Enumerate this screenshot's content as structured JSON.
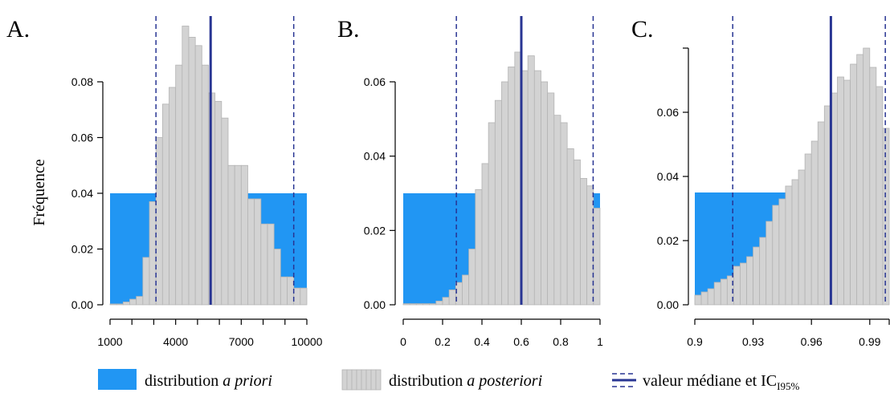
{
  "ylabel": "Fréquence",
  "legend": {
    "prior": "distribution ",
    "prior_em": "a priori",
    "posterior": "distribution ",
    "posterior_em": "a posteriori",
    "median": "valeur médiane et IC",
    "median_sub": "I95%"
  },
  "colors": {
    "prior": "#2196f3",
    "posterior": "#d3d3d3",
    "posterior_edge": "#b4b4b4",
    "median": "#283593",
    "axis": "#000000"
  },
  "chart_data": [
    {
      "type": "bar",
      "panel_label": "A.",
      "xlim": [
        1000,
        10000
      ],
      "ylim": [
        0,
        0.08
      ],
      "xticks": [
        1000,
        4000,
        7000,
        10000
      ],
      "xtick_labels": [
        "1000",
        "4000",
        "7000",
        "10000"
      ],
      "yticks": [
        0,
        0.02,
        0.04,
        0.06,
        0.08
      ],
      "ytick_labels": [
        "0.00",
        "0.02",
        "0.04",
        "0.06",
        "0.08"
      ],
      "xaxis_extra_ticks": [
        2000,
        3000,
        5000,
        6000,
        8000,
        9000
      ],
      "prior": [
        {
          "x": [
            1000,
            10000
          ],
          "y": 0.04
        }
      ],
      "posterior": {
        "edges_from": 1000,
        "bin_width": 300,
        "values": [
          0,
          0,
          0.001,
          0.002,
          0.003,
          0.017,
          0.037,
          0.06,
          0.072,
          0.078,
          0.086,
          0.1,
          0.096,
          0.093,
          0.086,
          0.076,
          0.073,
          0.067,
          0.05,
          0.05,
          0.05,
          0.038,
          0.038,
          0.029,
          0.029,
          0.02,
          0.01,
          0.01,
          0.006,
          0.006
        ]
      },
      "median": 5600,
      "ci": [
        3100,
        9400
      ]
    },
    {
      "type": "bar",
      "panel_label": "B.",
      "xlim": [
        0,
        1
      ],
      "ylim": [
        0,
        0.06
      ],
      "xticks": [
        0,
        0.2,
        0.4,
        0.6,
        0.8,
        1
      ],
      "xtick_labels": [
        "0",
        "0.2",
        "0.4",
        "0.6",
        "0.8",
        "1"
      ],
      "yticks": [
        0,
        0.02,
        0.04,
        0.06
      ],
      "ytick_labels": [
        "0.00",
        "0.02",
        "0.04",
        "0.06"
      ],
      "prior": [
        {
          "x": [
            0,
            1
          ],
          "y": 0.03
        }
      ],
      "posterior": {
        "edges_from": 0,
        "bin_width": 0.03333,
        "values": [
          0,
          0,
          0,
          0,
          0,
          0.001,
          0.002,
          0.004,
          0.006,
          0.008,
          0.015,
          0.031,
          0.038,
          0.049,
          0.055,
          0.06,
          0.064,
          0.068,
          0.063,
          0.067,
          0.063,
          0.06,
          0.057,
          0.051,
          0.049,
          0.042,
          0.039,
          0.034,
          0.032,
          0.026
        ]
      },
      "median": 0.6,
      "ci": [
        0.27,
        0.965
      ]
    },
    {
      "type": "bar",
      "panel_label": "C.",
      "xlim": [
        0.9,
        1.0
      ],
      "ylim": [
        0,
        0.08
      ],
      "xticks": [
        0.9,
        0.93,
        0.96,
        0.99
      ],
      "xtick_labels": [
        "0.9",
        "0.93",
        "0.96",
        "0.99"
      ],
      "yticks": [
        0,
        0.02,
        0.04,
        0.06
      ],
      "ytick_labels": [
        "0.00",
        "0.02",
        "0.04",
        "0.06"
      ],
      "xaxis_extra_ticks": [
        1.0
      ],
      "prior": [
        {
          "x": [
            0.9,
            1.0
          ],
          "y": 0.035
        }
      ],
      "posterior": {
        "edges_from": 0.9,
        "bin_width": 0.003333,
        "values": [
          0.003,
          0.004,
          0.005,
          0.007,
          0.008,
          0.009,
          0.012,
          0.013,
          0.015,
          0.018,
          0.021,
          0.026,
          0.031,
          0.033,
          0.037,
          0.039,
          0.042,
          0.047,
          0.051,
          0.057,
          0.062,
          0.066,
          0.071,
          0.07,
          0.075,
          0.078,
          0.08,
          0.074,
          0.068,
          0.055
        ]
      },
      "median": 0.97,
      "ci": [
        0.9195,
        0.998
      ]
    }
  ]
}
